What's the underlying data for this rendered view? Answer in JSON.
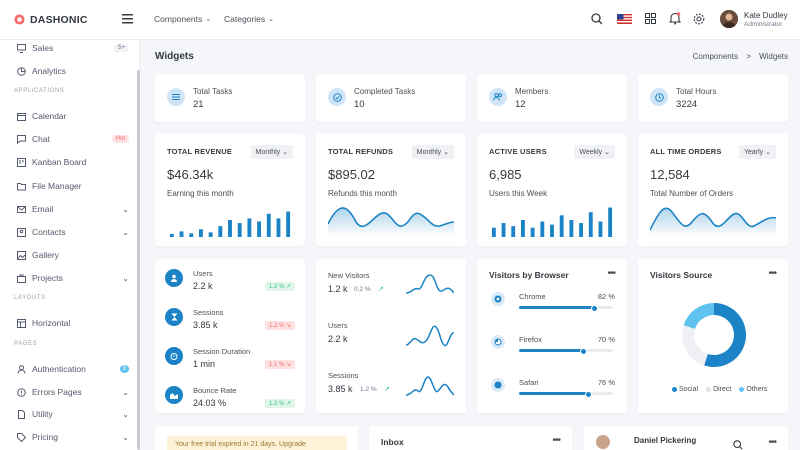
{
  "brand": {
    "name": "DASHONIC",
    "color": "#f46a6a"
  },
  "topnav": {
    "components": "Components",
    "categories": "Categories"
  },
  "user": {
    "name": "Kate Dudley",
    "role": "Administrator"
  },
  "sidebar": {
    "items": [
      {
        "label": "Sales",
        "icon": "monitor-icon",
        "badge": "5+",
        "top": 48
      },
      {
        "label": "Analytics",
        "icon": "pie-chart-icon",
        "top": 71
      }
    ],
    "sections": [
      {
        "label": "APPLICATIONS",
        "top": 91
      },
      {
        "label": "LAYOUTS",
        "top": 298
      },
      {
        "label": "PAGES",
        "top": 344
      }
    ],
    "apps": [
      {
        "label": "Calendar",
        "icon": "calendar-icon",
        "top": 116
      },
      {
        "label": "Chat",
        "icon": "chat-icon",
        "badge": "Hot",
        "top": 139
      },
      {
        "label": "Kanban Board",
        "icon": "kanban-icon",
        "top": 162
      },
      {
        "label": "File Manager",
        "icon": "folder-icon",
        "top": 186
      },
      {
        "label": "Email",
        "icon": "mail-icon",
        "chev": true,
        "top": 209
      },
      {
        "label": "Contacts",
        "icon": "contacts-icon",
        "chev": true,
        "top": 232
      },
      {
        "label": "Gallery",
        "icon": "image-icon",
        "top": 255
      },
      {
        "label": "Projects",
        "icon": "briefcase-icon",
        "chev": true,
        "top": 278
      }
    ],
    "layouts": [
      {
        "label": "Horizontal",
        "icon": "layout-icon",
        "top": 323
      }
    ],
    "pages": [
      {
        "label": "Authentication",
        "icon": "user-icon",
        "badge": "9",
        "top": 369
      },
      {
        "label": "Errors Pages",
        "icon": "alert-icon",
        "chev": true,
        "top": 392
      },
      {
        "label": "Utility",
        "icon": "file-icon",
        "chev": true,
        "top": 414
      },
      {
        "label": "Pricing",
        "icon": "tag-icon",
        "chev": true,
        "top": 437
      }
    ]
  },
  "page": {
    "title": "Widgets",
    "breadcrumb": [
      "Components",
      "Widgets"
    ],
    "sep": ">"
  },
  "stats": [
    {
      "label": "Total Tasks",
      "value": "21",
      "icon": "list-icon"
    },
    {
      "label": "Completed Tasks",
      "value": "10",
      "icon": "check-circle-icon"
    },
    {
      "label": "Members",
      "value": "12",
      "icon": "users-icon"
    },
    {
      "label": "Total Hours",
      "value": "3224",
      "icon": "clock-icon"
    }
  ],
  "summary": [
    {
      "title": "TOTAL REVENUE",
      "select": "Monthly",
      "value": "$46.34k",
      "sub": "Earning this month",
      "chart": "bar",
      "bars": [
        0.1,
        0.18,
        0.12,
        0.25,
        0.15,
        0.35,
        0.55,
        0.45,
        0.6,
        0.5,
        0.75,
        0.6,
        0.82
      ]
    },
    {
      "title": "TOTAL REFUNDS",
      "select": "Monthly",
      "value": "$895.02",
      "sub": "Refunds this month",
      "chart": "area"
    },
    {
      "title": "ACTIVE USERS",
      "select": "Weekly",
      "value": "6,985",
      "sub": "Users this Week",
      "chart": "bar",
      "bars": [
        0.3,
        0.45,
        0.35,
        0.55,
        0.3,
        0.5,
        0.4,
        0.7,
        0.55,
        0.45,
        0.8,
        0.5,
        0.95
      ]
    },
    {
      "title": "ALL TIME ORDERS",
      "select": "Yearly",
      "value": "12,584",
      "sub": "Total Number of Orders",
      "chart": "area"
    }
  ],
  "metrics": [
    {
      "label": "Users",
      "value": "2.2 k",
      "badge": "1.2 %",
      "trend": "up",
      "icon": "user-icon"
    },
    {
      "label": "Sessions",
      "value": "3.85 k",
      "badge": "1.2 %",
      "trend": "down",
      "icon": "hourglass-icon"
    },
    {
      "label": "Session Duration",
      "value": "1 min",
      "badge": "1.1 %",
      "trend": "down",
      "icon": "stopwatch-icon"
    },
    {
      "label": "Bounce Rate",
      "value": "24.03 %",
      "badge": "1.2 %",
      "trend": "up",
      "icon": "chart-icon"
    }
  ],
  "visitors": [
    {
      "label": "New Visitors",
      "value": "1.2 k",
      "pct": "0.2 %"
    },
    {
      "label": "Users",
      "value": "2.2 k",
      "pct": ""
    },
    {
      "label": "Sessions",
      "value": "3.85 k",
      "pct": "1.2 %"
    }
  ],
  "browsers": {
    "title": "Visitors by Browser",
    "items": [
      {
        "label": "Chrome",
        "pct": "82 %",
        "value": 0.82,
        "icon": "chrome-icon"
      },
      {
        "label": "Firefox",
        "pct": "70 %",
        "value": 0.7,
        "icon": "firefox-icon"
      },
      {
        "label": "Safari",
        "pct": "76 %",
        "value": 0.76,
        "icon": "safari-icon"
      }
    ]
  },
  "source": {
    "title": "Visitors Source",
    "legend": [
      {
        "label": "Social",
        "color": "#1c84c6",
        "value": 0.55
      },
      {
        "label": "Direct",
        "color": "#eef0f3",
        "value": 0.25
      },
      {
        "label": "Others",
        "color": "#5fc3f0",
        "value": 0.2
      }
    ]
  },
  "bottom": {
    "alert": "Your free trial expired in 21 days. Upgrade",
    "inbox": "Inbox",
    "contact": "Daniel Pickering"
  },
  "colors": {
    "accent": "#1c84c6",
    "light": "#cfe5f7"
  }
}
